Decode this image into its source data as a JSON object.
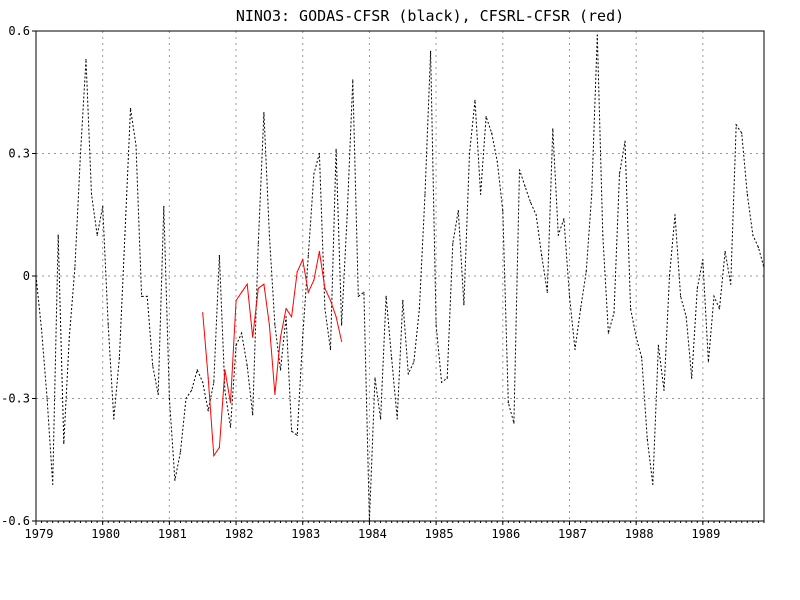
{
  "chart_data": {
    "type": "line",
    "title": "NINO3: GODAS-CFSR (black), CFSRL-CFSR (red)",
    "xlabel": "",
    "ylabel": "",
    "xlim": [
      1979.0,
      1989.917
    ],
    "ylim": [
      -0.6,
      0.6
    ],
    "x_ticks": [
      "1979",
      "1980",
      "1981",
      "1982",
      "1983",
      "1984",
      "1985",
      "1986",
      "1987",
      "1988",
      "1989"
    ],
    "y_ticks": [
      "0.6",
      "0.3",
      "0",
      "-0.3",
      "-0.6"
    ],
    "grid": true,
    "colors": {
      "godas": "#000000",
      "cfsrl": "#ff0000"
    },
    "series": [
      {
        "x": [
          1979.0,
          1979.083,
          1979.167,
          1979.25,
          1979.333,
          1979.417,
          1979.5,
          1979.583,
          1979.667,
          1979.75,
          1979.833,
          1979.917,
          1980.0,
          1980.083,
          1980.167,
          1980.25,
          1980.333,
          1980.417,
          1980.5,
          1980.583,
          1980.667,
          1980.75,
          1980.833,
          1980.917,
          1981.0,
          1981.083,
          1981.167,
          1981.25,
          1981.333,
          1981.417,
          1981.5,
          1981.583,
          1981.667,
          1981.75,
          1981.833,
          1981.917,
          1982.0,
          1982.083,
          1982.167,
          1982.25,
          1982.333,
          1982.417,
          1982.5,
          1982.583,
          1982.667,
          1982.75,
          1982.833,
          1982.917,
          1983.0,
          1983.083,
          1983.167,
          1983.25,
          1983.333,
          1983.417,
          1983.5,
          1983.583,
          1983.667,
          1983.75,
          1983.833,
          1983.917,
          1984.0,
          1984.083,
          1984.167,
          1984.25,
          1984.333,
          1984.417,
          1984.5,
          1984.583,
          1984.667,
          1984.75,
          1984.833,
          1984.917,
          1985.0,
          1985.083,
          1985.167,
          1985.25,
          1985.333,
          1985.417,
          1985.5,
          1985.583,
          1985.667,
          1985.75,
          1985.833,
          1985.917,
          1986.0,
          1986.083,
          1986.167,
          1986.25,
          1986.333,
          1986.417,
          1986.5,
          1986.583,
          1986.667,
          1986.75,
          1986.833,
          1986.917,
          1987.0,
          1987.083,
          1987.167,
          1987.25,
          1987.333,
          1987.417,
          1987.5,
          1987.583,
          1987.667,
          1987.75,
          1987.833,
          1987.917,
          1988.0,
          1988.083,
          1988.167,
          1988.25,
          1988.333,
          1988.417,
          1988.5,
          1988.583,
          1988.667,
          1988.75,
          1988.833,
          1988.917,
          1989.0,
          1989.083,
          1989.167,
          1989.25,
          1989.333,
          1989.417,
          1989.5,
          1989.583,
          1989.667,
          1989.75,
          1989.833,
          1989.917
        ],
        "y": [
          0.0,
          -0.13,
          -0.3,
          -0.51,
          0.1,
          -0.41,
          -0.15,
          0.02,
          0.3,
          0.53,
          0.2,
          0.1,
          0.17,
          -0.12,
          -0.35,
          -0.2,
          0.1,
          0.41,
          0.32,
          -0.05,
          -0.05,
          -0.22,
          -0.29,
          0.17,
          -0.3,
          -0.5,
          -0.43,
          -0.3,
          -0.28,
          -0.23,
          -0.26,
          -0.33,
          -0.26,
          0.05,
          -0.28,
          -0.37,
          -0.17,
          -0.14,
          -0.22,
          -0.34,
          0.08,
          0.4,
          0.1,
          -0.12,
          -0.23,
          -0.1,
          -0.38,
          -0.39,
          -0.15,
          0.05,
          0.25,
          0.3,
          -0.08,
          -0.18,
          0.31,
          -0.12,
          0.15,
          0.48,
          -0.05,
          -0.04,
          -0.6,
          -0.25,
          -0.35,
          -0.05,
          -0.2,
          -0.35,
          -0.06,
          -0.24,
          -0.21,
          -0.08,
          0.2,
          0.55,
          -0.12,
          -0.26,
          -0.25,
          0.08,
          0.16,
          -0.07,
          0.3,
          0.43,
          0.2,
          0.39,
          0.35,
          0.28,
          0.16,
          -0.31,
          -0.36,
          0.26,
          0.22,
          0.18,
          0.15,
          0.05,
          -0.04,
          0.36,
          0.1,
          0.14,
          -0.05,
          -0.18,
          -0.08,
          0.01,
          0.2,
          0.59,
          0.1,
          -0.14,
          -0.09,
          0.25,
          0.33,
          -0.08,
          -0.15,
          -0.2,
          -0.4,
          -0.51,
          -0.17,
          -0.28,
          0.0,
          0.15,
          -0.05,
          -0.1,
          -0.25,
          -0.03,
          0.04,
          -0.21,
          -0.05,
          -0.08,
          0.06,
          -0.02,
          0.37,
          0.35,
          0.2,
          0.1,
          0.07,
          0.02
        ]
      },
      {
        "x": [
          1981.5,
          1981.583,
          1981.667,
          1981.75,
          1981.833,
          1981.917,
          1982.0,
          1982.083,
          1982.167,
          1982.25,
          1982.333,
          1982.417,
          1982.5,
          1982.583,
          1982.667,
          1982.75,
          1982.833,
          1982.917,
          1983.0,
          1983.083,
          1983.167,
          1983.25,
          1983.333,
          1983.417,
          1983.5,
          1983.583,
          1983.667
        ],
        "y": [
          -0.09,
          -0.25,
          -0.44,
          -0.42,
          -0.23,
          -0.31,
          -0.06,
          -0.04,
          -0.02,
          -0.15,
          -0.03,
          -0.02,
          -0.12,
          -0.29,
          -0.15,
          -0.08,
          -0.1,
          0.01,
          0.04,
          -0.04,
          -0.01,
          0.06,
          -0.03,
          -0.06,
          -0.1,
          -0.16,
          null
        ]
      }
    ]
  }
}
